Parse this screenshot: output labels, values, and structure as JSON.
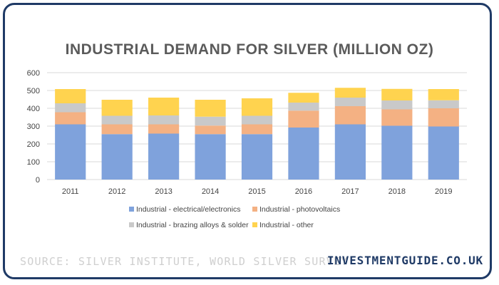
{
  "chart_data": {
    "type": "bar",
    "stacked": true,
    "title": "INDUSTRIAL DEMAND FOR SILVER (MILLION OZ)",
    "categories": [
      "2011",
      "2012",
      "2013",
      "2014",
      "2015",
      "2016",
      "2017",
      "2018",
      "2019"
    ],
    "series": [
      {
        "name": "Industrial - electrical/electronics",
        "color": "#7fa2dc",
        "values": [
          310,
          255,
          258,
          255,
          255,
          292,
          310,
          302,
          298
        ]
      },
      {
        "name": "Industrial - photovoltaics",
        "color": "#f4b183",
        "values": [
          68,
          55,
          52,
          48,
          55,
          95,
          102,
          92,
          102
        ]
      },
      {
        "name": "Industrial - brazing alloys & solder",
        "color": "#c9c9c9",
        "values": [
          50,
          48,
          50,
          50,
          48,
          45,
          48,
          50,
          45
        ]
      },
      {
        "name": "Industrial - other",
        "color": "#ffd34f",
        "values": [
          80,
          90,
          100,
          95,
          98,
          55,
          55,
          65,
          63
        ]
      }
    ],
    "ylim": [
      0,
      600
    ],
    "yticks": [
      0,
      100,
      200,
      300,
      400,
      500,
      600
    ],
    "grid": true,
    "legend": "bottom"
  },
  "footer": {
    "source": "SOURCE: SILVER INSTITUTE, WORLD SILVER SURVEY",
    "brand": "INVESTMENTGUIDE.CO.UK"
  },
  "colors": {
    "frame": "#1f3a66",
    "grid": "#d9d9d9",
    "text": "#444444"
  }
}
